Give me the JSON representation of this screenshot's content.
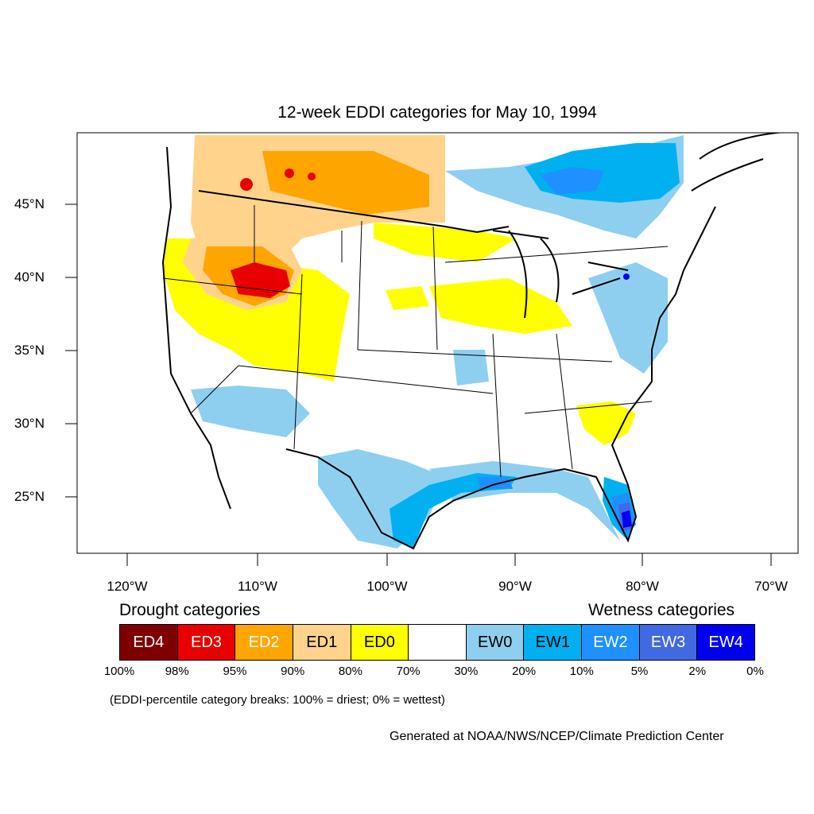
{
  "title": "12-week EDDI categories for May 10, 1994",
  "lat_labels": [
    "45°N",
    "40°N",
    "35°N",
    "30°N",
    "25°N"
  ],
  "lon_labels": [
    "120°W",
    "110°W",
    "100°W",
    "90°W",
    "80°W",
    "70°W"
  ],
  "legend": {
    "drought_heading": "Drought categories",
    "wetness_heading": "Wetness categories",
    "categories": [
      {
        "label": "ED4",
        "color": "#7f0000",
        "text_color": "#ffffff"
      },
      {
        "label": "ED3",
        "color": "#e80000",
        "text_color": "#ffffff"
      },
      {
        "label": "ED2",
        "color": "#ffa500",
        "text_color": "#ffffff"
      },
      {
        "label": "ED1",
        "color": "#ffd38c",
        "text_color": "#000000"
      },
      {
        "label": "ED0",
        "color": "#ffff00",
        "text_color": "#000000"
      },
      {
        "label": "",
        "color": "#ffffff",
        "text_color": "#000000"
      },
      {
        "label": "EW0",
        "color": "#8ecff0",
        "text_color": "#000000"
      },
      {
        "label": "EW1",
        "color": "#00b0f0",
        "text_color": "#000000"
      },
      {
        "label": "EW2",
        "color": "#1e90ff",
        "text_color": "#ffffff"
      },
      {
        "label": "EW3",
        "color": "#4169e1",
        "text_color": "#ffffff"
      },
      {
        "label": "EW4",
        "color": "#0000f0",
        "text_color": "#ffffff"
      }
    ],
    "breaks": [
      "100%",
      "98%",
      "95%",
      "90%",
      "80%",
      "70%",
      "30%",
      "20%",
      "10%",
      "5%",
      "2%",
      "0%"
    ]
  },
  "note": "(EDDI-percentile category breaks: 100% = driest; 0% = wettest)",
  "credit": "Generated at NOAA/NWS/NCEP/Climate Prediction Center"
}
